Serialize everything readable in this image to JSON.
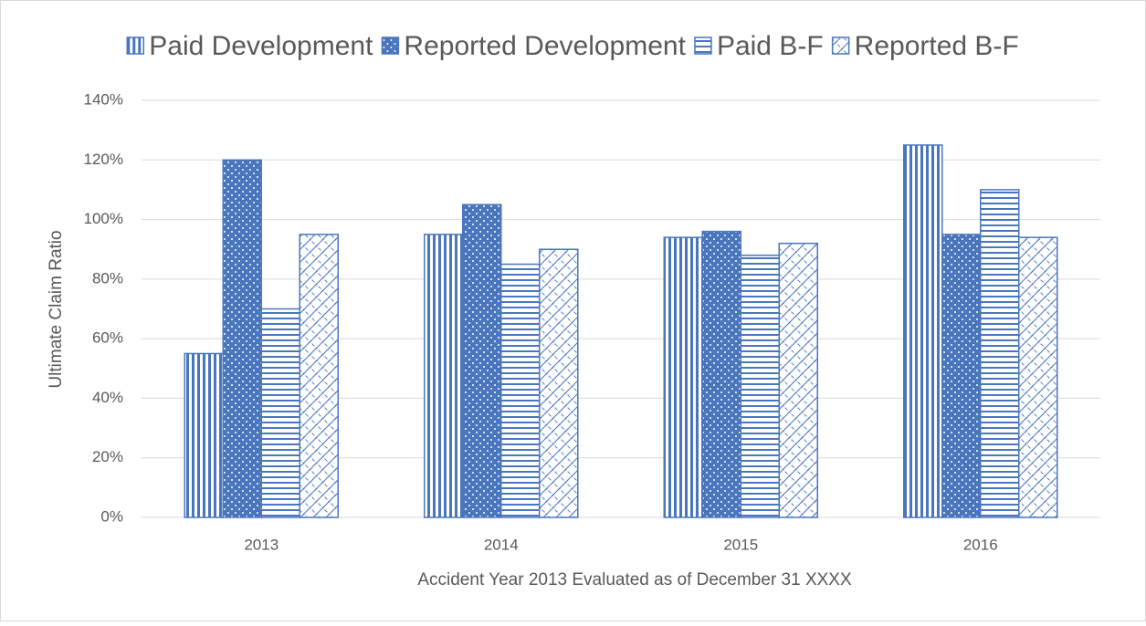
{
  "chart_data": {
    "type": "bar",
    "categories": [
      "2013",
      "2014",
      "2015",
      "2016"
    ],
    "series": [
      {
        "name": "Paid Development",
        "color": "#4a76bd",
        "pattern": "vertical",
        "values": [
          55,
          95,
          94,
          125
        ]
      },
      {
        "name": "Reported Development",
        "color": "#4a76bd",
        "pattern": "dots",
        "values": [
          120,
          105,
          96,
          95
        ]
      },
      {
        "name": "Paid B-F",
        "color": "#4a76bd",
        "pattern": "horizontal",
        "values": [
          70,
          85,
          88,
          110
        ]
      },
      {
        "name": "Reported B-F",
        "color": "#4a76bd",
        "pattern": "crosshatch",
        "values": [
          95,
          90,
          92,
          94
        ]
      }
    ],
    "ylabel": "Ultimate Claim Ratio",
    "xlabel": "Accident Year 2013 Evaluated as of December 31 XXXX",
    "ylim": [
      0,
      140
    ],
    "yticks": [
      {
        "value": 0,
        "label": "0%"
      },
      {
        "value": 20,
        "label": "20%"
      },
      {
        "value": 40,
        "label": "40%"
      },
      {
        "value": 60,
        "label": "60%"
      },
      {
        "value": 80,
        "label": "80%"
      },
      {
        "value": 100,
        "label": "100%"
      },
      {
        "value": 120,
        "label": "120%"
      },
      {
        "value": 140,
        "label": "140%"
      }
    ],
    "grid": true,
    "legend": "top"
  }
}
